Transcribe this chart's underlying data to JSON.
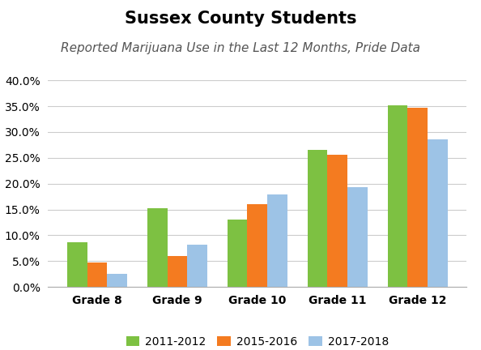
{
  "title": "Sussex County Students",
  "subtitle": "Reported Marijuana Use in the Last 12 Months, Pride Data",
  "categories": [
    "Grade 8",
    "Grade 9",
    "Grade 10",
    "Grade 11",
    "Grade 12"
  ],
  "series": [
    {
      "label": "2011-2012",
      "color": "#7DC142",
      "values": [
        8.7,
        15.3,
        13.0,
        26.6,
        35.2
      ]
    },
    {
      "label": "2015-2016",
      "color": "#F47B20",
      "values": [
        4.7,
        6.0,
        16.1,
        25.6,
        34.7
      ]
    },
    {
      "label": "2017-2018",
      "color": "#9DC3E6",
      "values": [
        2.5,
        8.2,
        17.9,
        19.3,
        28.5
      ]
    }
  ],
  "ylim": [
    0,
    42
  ],
  "yticks": [
    0,
    5,
    10,
    15,
    20,
    25,
    30,
    35,
    40
  ],
  "ytick_labels": [
    "0.0%",
    "5.0%",
    "10.0%",
    "15.0%",
    "20.0%",
    "25.0%",
    "30.0%",
    "35.0%",
    "40.0%"
  ],
  "background_color": "#FFFFFF",
  "bar_width": 0.25,
  "title_fontsize": 15,
  "subtitle_fontsize": 11,
  "tick_fontsize": 10,
  "legend_fontsize": 10
}
